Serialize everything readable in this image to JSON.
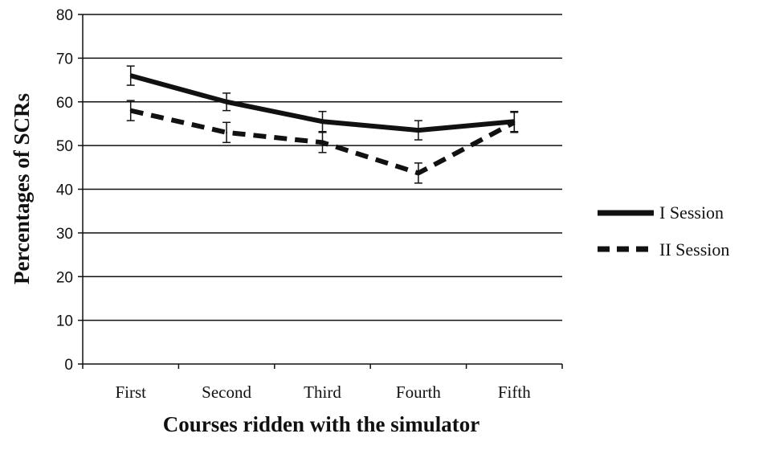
{
  "chart_data": {
    "type": "line",
    "categories": [
      "First",
      "Second",
      "Third",
      "Fourth",
      "Fifth"
    ],
    "series": [
      {
        "name": "I Session",
        "values": [
          66,
          60,
          55.5,
          53.5,
          55.5
        ],
        "errors": [
          2.2,
          2.0,
          2.3,
          2.2,
          2.3
        ],
        "line_style": "solid",
        "color": "#111111"
      },
      {
        "name": "II Session",
        "values": [
          58,
          53,
          50.7,
          43.7,
          55.3
        ],
        "errors": [
          2.3,
          2.3,
          2.3,
          2.3,
          2.3
        ],
        "line_style": "dashed",
        "color": "#111111"
      }
    ],
    "xlabel": "Courses ridden with the simulator",
    "ylabel": "Percentages of  SCRs",
    "ylim": [
      0,
      80
    ],
    "yticks": [
      0,
      10,
      20,
      30,
      40,
      50,
      60,
      70,
      80
    ],
    "grid": "horizontal",
    "legend": "right"
  }
}
